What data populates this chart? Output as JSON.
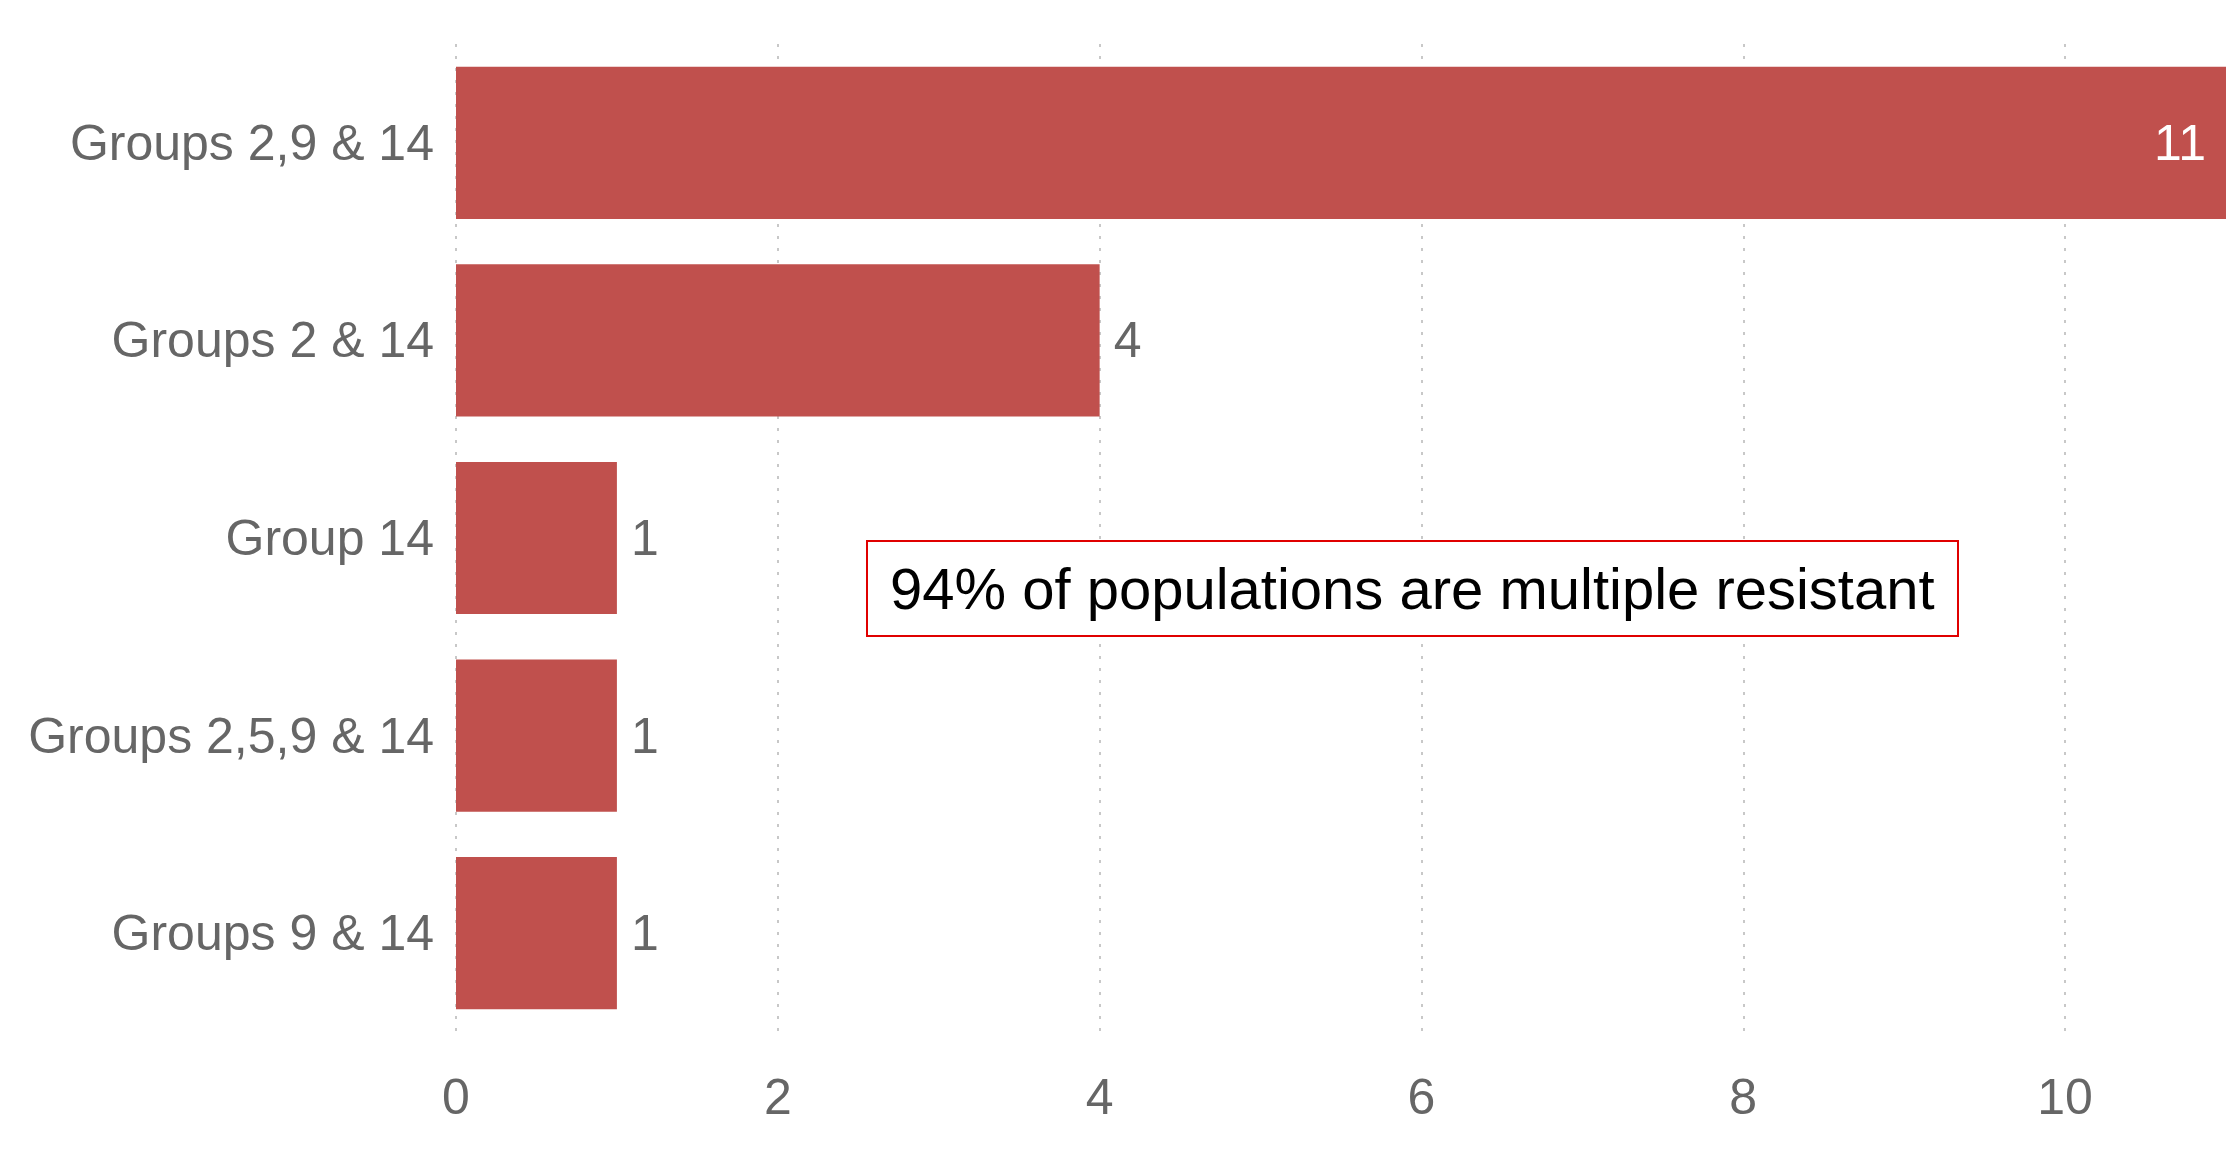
{
  "chart_data": {
    "type": "bar",
    "orientation": "horizontal",
    "categories": [
      "Groups 2,9 & 14",
      "Groups 2 & 14",
      "Group 14",
      "Groups 2,5,9 & 14",
      "Groups 9 & 14"
    ],
    "values": [
      11,
      4,
      1,
      1,
      1
    ],
    "color": "#c0504d",
    "xlim": [
      0,
      11
    ],
    "xticks": [
      0,
      2,
      4,
      6,
      8,
      10
    ],
    "grid": "x",
    "data_labels": true,
    "annotations": [
      "94% of populations are multiple resistant"
    ]
  }
}
